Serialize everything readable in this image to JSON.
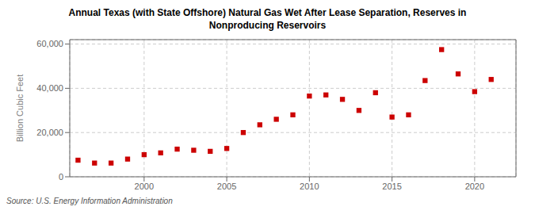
{
  "chart_data": {
    "type": "scatter",
    "title": "Annual Texas (with State Offshore) Natural Gas Wet After Lease Separation, Reserves in\nNonproducing Reservoirs",
    "ylabel": "Billion Cubic Feet",
    "annotations": [
      "Source: U.S. Energy Information Administration"
    ],
    "x": [
      1996,
      1997,
      1998,
      1999,
      2000,
      2001,
      2002,
      2003,
      2004,
      2005,
      2006,
      2007,
      2008,
      2009,
      2010,
      2011,
      2012,
      2013,
      2014,
      2015,
      2016,
      2017,
      2018,
      2019,
      2020,
      2021
    ],
    "values": [
      7500,
      6200,
      6200,
      8000,
      10000,
      10800,
      12500,
      12000,
      11500,
      12800,
      20000,
      23500,
      26000,
      28000,
      36500,
      37000,
      35000,
      30000,
      38000,
      27000,
      28000,
      43500,
      57500,
      46500,
      38500,
      44000
    ],
    "color": "#cc0000",
    "marker": "square",
    "xlim": [
      1995.5,
      2022.5
    ],
    "xticks": [
      2000,
      2005,
      2010,
      2015,
      2020
    ],
    "ylim": [
      0,
      62000
    ],
    "yticks": [
      0,
      {
        "value": 20000,
        "label": "20,000"
      },
      {
        "value": 40000,
        "label": "40,000"
      },
      {
        "value": 60000,
        "label": "60,000"
      }
    ],
    "grid": true
  }
}
